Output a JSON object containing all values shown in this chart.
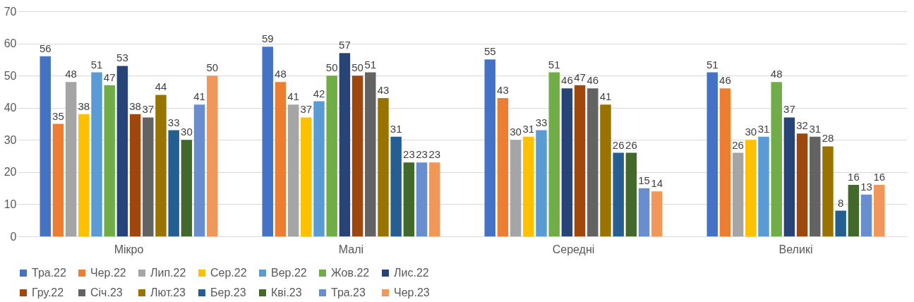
{
  "chart_data": {
    "type": "bar",
    "categories": [
      "Мікро",
      "Малі",
      "Середні",
      "Великі"
    ],
    "series": [
      {
        "name": "Тра.22",
        "color": "#4472c4",
        "values": [
          56,
          59,
          55,
          51
        ]
      },
      {
        "name": "Чер.22",
        "color": "#ed7d31",
        "values": [
          35,
          48,
          43,
          46
        ]
      },
      {
        "name": "Лип.22",
        "color": "#a5a5a5",
        "values": [
          48,
          41,
          30,
          26
        ]
      },
      {
        "name": "Сер.22",
        "color": "#ffc000",
        "values": [
          38,
          37,
          31,
          30
        ]
      },
      {
        "name": "Вер.22",
        "color": "#5b9bd5",
        "values": [
          51,
          42,
          33,
          31
        ]
      },
      {
        "name": "Жов.22",
        "color": "#70ad47",
        "values": [
          47,
          50,
          51,
          48
        ]
      },
      {
        "name": "Лис.22",
        "color": "#264478",
        "values": [
          53,
          57,
          46,
          37
        ]
      },
      {
        "name": "Гру.22",
        "color": "#9e480e",
        "values": [
          38,
          50,
          47,
          32
        ]
      },
      {
        "name": "Січ.23",
        "color": "#636363",
        "values": [
          37,
          51,
          46,
          31
        ]
      },
      {
        "name": "Лют.23",
        "color": "#997300",
        "values": [
          44,
          43,
          41,
          28
        ]
      },
      {
        "name": "Бер.23",
        "color": "#255e91",
        "values": [
          33,
          31,
          26,
          8
        ]
      },
      {
        "name": "Кві.23",
        "color": "#43682b",
        "values": [
          30,
          23,
          26,
          16
        ]
      },
      {
        "name": "Тра.23",
        "color": "#698ed0",
        "values": [
          41,
          23,
          15,
          13
        ]
      },
      {
        "name": "Чер.23",
        "color": "#f1975a",
        "values": [
          50,
          23,
          14,
          16
        ]
      }
    ],
    "ylim": [
      0,
      70
    ],
    "yticks": [
      0,
      10,
      20,
      30,
      40,
      50,
      60,
      70
    ],
    "grid": "y",
    "legend": "bottom",
    "data_labels": true
  }
}
